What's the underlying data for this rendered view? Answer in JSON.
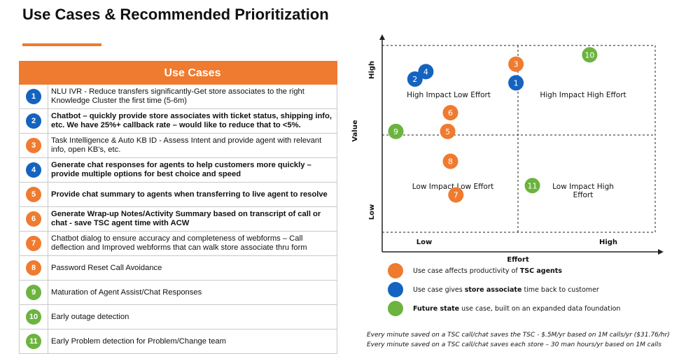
{
  "title": "Use Cases & Recommended Prioritization",
  "table": {
    "header": "Use Cases",
    "rows": [
      {
        "num": "1",
        "color": "#1463c0",
        "bold": false,
        "text": "NLU IVR - Reduce transfers significantly-Get store associates to the right Knowledge Cluster the first time (5-6m)"
      },
      {
        "num": "2",
        "color": "#1463c0",
        "bold": true,
        "text": "Chatbot – quickly provide store associates with ticket status, shipping info, etc.  We have 25%+ callback rate – would like to reduce that to <5%."
      },
      {
        "num": "3",
        "color": "#ee7b30",
        "bold": false,
        "text": "Task Intelligence & Auto KB ID - Assess Intent and provide agent with relevant info, open KB’s, etc."
      },
      {
        "num": "4",
        "color": "#1463c0",
        "bold": true,
        "text": "Generate chat responses for agents to help customers more quickly – provide multiple options for best choice and speed"
      },
      {
        "num": "5",
        "color": "#ee7b30",
        "bold": true,
        "text": "Provide chat summary to agents when transferring to live agent to resolve"
      },
      {
        "num": "6",
        "color": "#ee7b30",
        "bold": true,
        "text": "Generate Wrap-up Notes/Activity Summary based on transcript of call or chat - save TSC agent time with ACW"
      },
      {
        "num": "7",
        "color": "#ee7b30",
        "bold": false,
        "text": "Chatbot dialog to ensure accuracy and completeness of webforms – Call deflection and Improved webforms that can walk store associate thru form"
      },
      {
        "num": "8",
        "color": "#ee7b30",
        "bold": false,
        "text": "Password Reset Call Avoidance"
      },
      {
        "num": "9",
        "color": "#6cb33f",
        "bold": false,
        "text": "Maturation of Agent Assist/Chat Responses"
      },
      {
        "num": "10",
        "color": "#6cb33f",
        "bold": false,
        "text": "Early outage detection"
      },
      {
        "num": "11",
        "color": "#6cb33f",
        "bold": false,
        "text": "Early Problem detection for Problem/Change team"
      }
    ]
  },
  "chart": {
    "y_axis_label": "Value",
    "y_high": "High",
    "y_low": "Low",
    "x_axis_label": "Effort",
    "x_low": "Low",
    "x_high": "High",
    "quadrants": {
      "tl": "High Impact Low Effort",
      "tr": "High Impact High Effort",
      "bl": "Low Impact Low Effort",
      "br_line1": "Low Impact High",
      "br_line2": "Effort"
    },
    "points": [
      {
        "num": "1",
        "color": "#1463c0",
        "effort": 0.49,
        "value": 0.8
      },
      {
        "num": "2",
        "color": "#1463c0",
        "effort": 0.12,
        "value": 0.82
      },
      {
        "num": "3",
        "color": "#ee7b30",
        "effort": 0.49,
        "value": 0.9
      },
      {
        "num": "4",
        "color": "#1463c0",
        "effort": 0.16,
        "value": 0.86
      },
      {
        "num": "5",
        "color": "#ee7b30",
        "effort": 0.24,
        "value": 0.54
      },
      {
        "num": "6",
        "color": "#ee7b30",
        "effort": 0.25,
        "value": 0.64
      },
      {
        "num": "7",
        "color": "#ee7b30",
        "effort": 0.27,
        "value": 0.2
      },
      {
        "num": "8",
        "color": "#ee7b30",
        "effort": 0.25,
        "value": 0.38
      },
      {
        "num": "9",
        "color": "#6cb33f",
        "effort": 0.05,
        "value": 0.54
      },
      {
        "num": "10",
        "color": "#6cb33f",
        "effort": 0.76,
        "value": 0.95
      },
      {
        "num": "11",
        "color": "#6cb33f",
        "effort": 0.55,
        "value": 0.25
      }
    ]
  },
  "legend": [
    {
      "color": "#ee7b30",
      "prefix": "Use case affects productivity of ",
      "bold": "TSC agents",
      "suffix": ""
    },
    {
      "color": "#1463c0",
      "prefix": "Use case gives ",
      "bold": "store associate",
      "suffix": " time back to customer"
    },
    {
      "color": "#6cb33f",
      "prefix": "",
      "bold": "Future state",
      "suffix": " use case, built on an expanded data foundation"
    }
  ],
  "footnotes": [
    "Every minute saved on a TSC call/chat saves the TSC - $.5M/yr based on 1M calls/yr ($31.76/hr)",
    "Every minute saved on a TSC call/chat saves each store – 30 man hours/yr based on 1M calls"
  ]
}
